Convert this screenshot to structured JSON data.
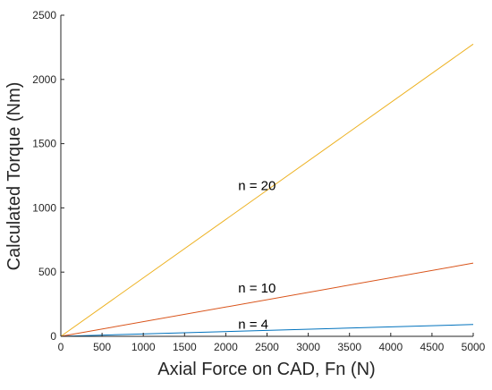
{
  "chart_data": {
    "type": "line",
    "xlabel": "Axial Force on CAD, Fn (N)",
    "ylabel": "Calculated Torque (Nm)",
    "xlim": [
      0,
      5000
    ],
    "ylim": [
      0,
      2500
    ],
    "x_ticks": [
      "0",
      "500",
      "1000",
      "1500",
      "2000",
      "2500",
      "3000",
      "3500",
      "4000",
      "4500",
      "5000"
    ],
    "y_ticks": [
      "0",
      "500",
      "1000",
      "1500",
      "2000",
      "2500"
    ],
    "grid": false,
    "series": [
      {
        "name": "n = 4",
        "x": [
          0,
          5000
        ],
        "y": [
          0,
          92
        ],
        "color": "#0072BD"
      },
      {
        "name": "n = 10",
        "x": [
          0,
          5000
        ],
        "y": [
          0,
          570
        ],
        "color": "#D95319"
      },
      {
        "name": "n = 20",
        "x": [
          0,
          5000
        ],
        "y": [
          0,
          2275
        ],
        "color": "#EDB120"
      }
    ],
    "annotations": [
      {
        "text": "n = 20",
        "x": 2150,
        "y": 1175
      },
      {
        "text": "n = 10",
        "x": 2150,
        "y": 375
      },
      {
        "text": "n = 4",
        "x": 2150,
        "y": 95
      }
    ]
  }
}
